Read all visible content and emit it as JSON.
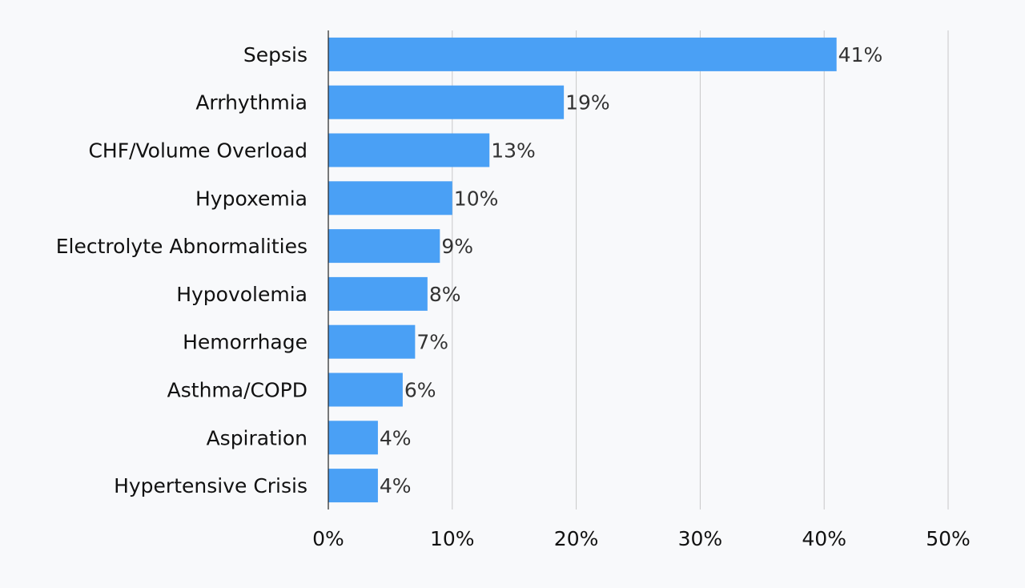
{
  "chart_data": {
    "type": "bar",
    "orientation": "horizontal",
    "title": "",
    "xlabel": "",
    "ylabel": "",
    "categories": [
      "Sepsis",
      "Arrhythmia",
      "CHF/Volume Overload",
      "Hypoxemia",
      "Electrolyte Abnormalities",
      "Hypovolemia",
      "Hemorrhage",
      "Asthma/COPD",
      "Aspiration",
      "Hypertensive Crisis"
    ],
    "values": [
      41,
      19,
      13,
      10,
      9,
      8,
      7,
      6,
      4,
      4
    ],
    "value_labels": [
      "41%",
      "19%",
      "13%",
      "10%",
      "9%",
      "8%",
      "7%",
      "6%",
      "4%",
      "4%"
    ],
    "xlim": [
      0,
      50
    ],
    "xticks": [
      0,
      10,
      20,
      30,
      40,
      50
    ],
    "xtick_labels": [
      "0%",
      "10%",
      "20%",
      "30%",
      "40%",
      "50%"
    ],
    "grid": "vertical",
    "legend": "none",
    "bar_color": "#4aa0f5",
    "grid_color": "#c8c8c8",
    "background_color": "#f8f9fb"
  }
}
